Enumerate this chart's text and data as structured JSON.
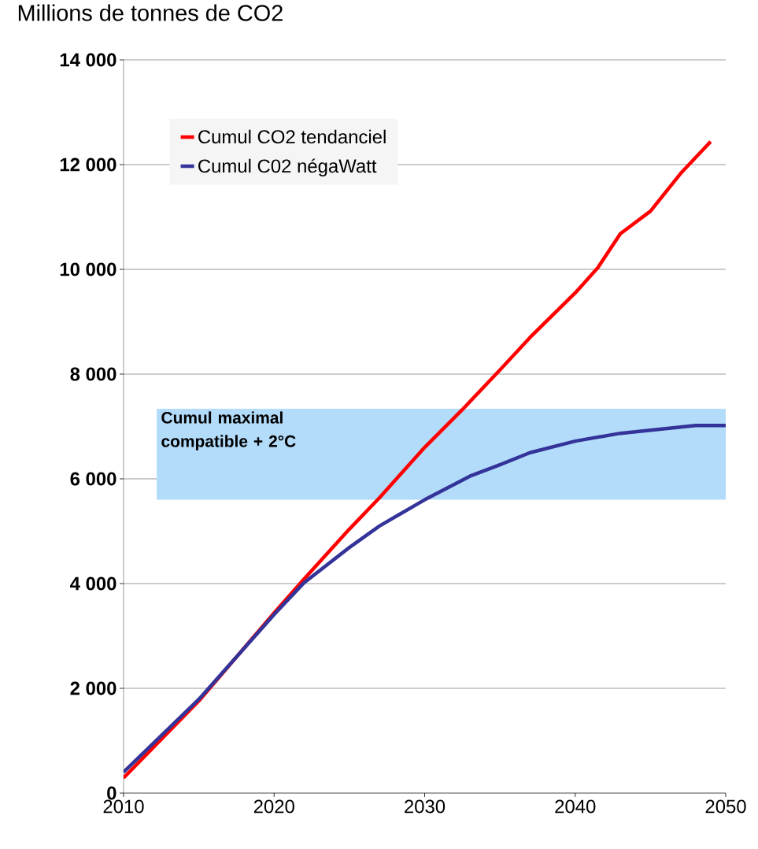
{
  "chart_data": {
    "type": "line",
    "ylabel": "Millions de tonnes de CO2",
    "xlim": [
      2010,
      2050
    ],
    "xticks": [
      2010,
      2020,
      2030,
      2040,
      2050
    ],
    "ylim": [
      0,
      14000
    ],
    "yticks": [
      {
        "value": 0,
        "label": "0"
      },
      {
        "value": 2000,
        "label": "2 000"
      },
      {
        "value": 4000,
        "label": "4 000"
      },
      {
        "value": 6000,
        "label": "6 000"
      },
      {
        "value": 8000,
        "label": "8 000"
      },
      {
        "value": 10000,
        "label": "10 000"
      },
      {
        "value": 12000,
        "label": "12 000"
      },
      {
        "value": 14000,
        "label": "14 000"
      }
    ],
    "grid": "y",
    "legend": "top left",
    "marker": "none",
    "line_style": "solid",
    "series": [
      {
        "name": "Cumul CO2 tendanciel",
        "color": "#ff0000",
        "x": [
          2010,
          2015,
          2020,
          2022,
          2025,
          2027,
          2030,
          2032.5,
          2035,
          2037,
          2040,
          2041.5,
          2043,
          2045,
          2047,
          2049
        ],
        "values": [
          290,
          1760,
          3440,
          4090,
          5040,
          5640,
          6600,
          7320,
          8080,
          8700,
          9550,
          10030,
          10680,
          11110,
          11830,
          12440
        ]
      },
      {
        "name": "Cumul C02 négaWatt",
        "color": "#333399",
        "x": [
          2010,
          2015,
          2020,
          2022,
          2025,
          2027,
          2030,
          2033,
          2035,
          2037,
          2040,
          2043,
          2045,
          2048,
          2050
        ],
        "values": [
          400,
          1790,
          3410,
          4020,
          4690,
          5100,
          5600,
          6050,
          6270,
          6500,
          6720,
          6870,
          6930,
          7020,
          7020
        ]
      }
    ],
    "bands": [
      {
        "axis": "y",
        "from": 5600,
        "to": 7340,
        "label": "Cumul maximal compatible + 2°C",
        "color": "#b3dcfa"
      }
    ]
  }
}
